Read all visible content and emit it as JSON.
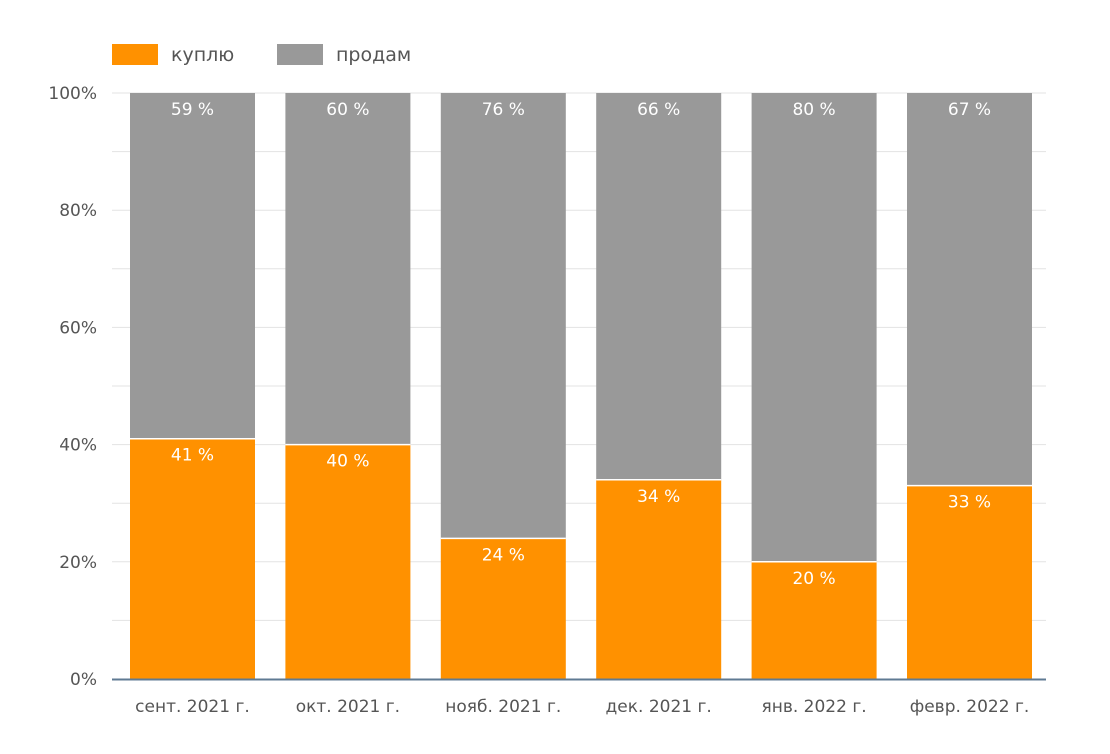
{
  "chart_data": {
    "type": "bar",
    "stacked": "percent",
    "categories": [
      "сент. 2021 г.",
      "окт. 2021 г.",
      "нояб. 2021 г.",
      "дек. 2021 г.",
      "янв. 2022 г.",
      "февр. 2022 г."
    ],
    "series": [
      {
        "name": "куплю",
        "color": "#ff9100",
        "values": [
          41,
          40,
          24,
          34,
          20,
          33
        ],
        "labels": [
          "41 %",
          "40 %",
          "24 %",
          "34 %",
          "20 %",
          "33 %"
        ]
      },
      {
        "name": "продам",
        "color": "#999999",
        "values": [
          59,
          60,
          76,
          66,
          80,
          67
        ],
        "labels": [
          "59 %",
          "60 %",
          "76 %",
          "66 %",
          "80 %",
          "67 %"
        ]
      }
    ],
    "y_ticks": [
      "0%",
      "20%",
      "40%",
      "60%",
      "80%",
      "100%"
    ],
    "ylim": [
      0,
      100
    ],
    "grid": true,
    "legend_position": "top-left"
  }
}
